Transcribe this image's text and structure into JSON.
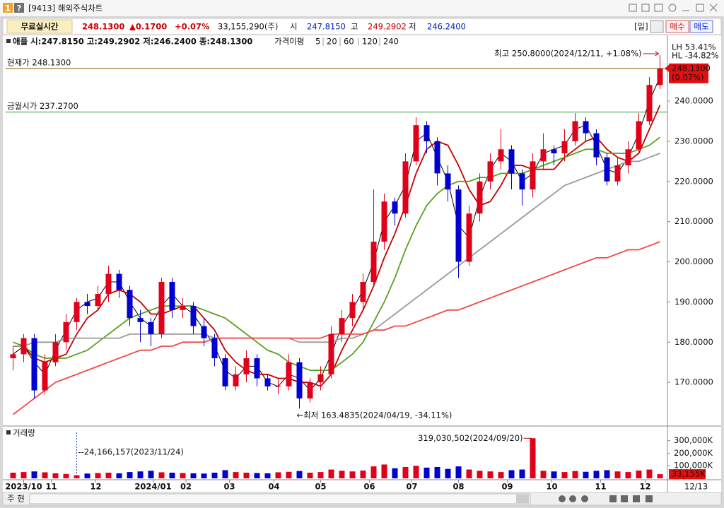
{
  "window": {
    "badge": "1",
    "help": "?",
    "title": "[9413] 해외주식차트"
  },
  "info_bar": {
    "mode": "무료실시간",
    "price": "248.1300",
    "change": "▲0.1700",
    "change_pct": "+0.07%",
    "volume": "33,155,290(주)",
    "open_label": "시",
    "open": "247.8150",
    "high_label": "고",
    "high": "249.2902",
    "low_label": "저",
    "low": "246.2400",
    "period": "[일]",
    "buy": "매수",
    "sell": "매도"
  },
  "legend_row": {
    "summary": "애플 시:247.8150 고:249.2902 저:246.2400 종:248.1300"
  },
  "bottom_bar": {
    "left": "주 현"
  },
  "chart_data": [
    {
      "type": "candlestick",
      "legend_title": "가격이평",
      "open": [
        176,
        177,
        181,
        168,
        175,
        180,
        185,
        190,
        189,
        192,
        197,
        193,
        186,
        185,
        182,
        195,
        188,
        189,
        184,
        181,
        176,
        169,
        172,
        176,
        171,
        169,
        169,
        175,
        166,
        170,
        172,
        182,
        186,
        190,
        195,
        205,
        215,
        212,
        225,
        234,
        230,
        222,
        218,
        200,
        212,
        220,
        225,
        228,
        222,
        218,
        225,
        228,
        227,
        230,
        235,
        232,
        226,
        220,
        224,
        228,
        235,
        244
      ],
      "high": [
        179,
        182,
        182,
        177,
        182,
        187,
        191,
        192,
        194,
        199,
        198,
        194,
        188,
        186,
        196,
        196,
        191,
        190,
        186,
        182,
        177,
        174,
        178,
        177,
        172,
        171,
        177,
        176,
        171,
        174,
        184,
        188,
        192,
        197,
        218,
        217,
        216,
        227,
        236,
        235,
        231,
        224,
        219,
        214,
        222,
        227,
        233,
        229,
        223,
        227,
        232,
        229,
        233,
        237,
        236,
        233,
        227,
        226,
        230,
        237,
        246,
        250.8
      ],
      "low": [
        173,
        175,
        166,
        167,
        174,
        178,
        183,
        187,
        188,
        190,
        191,
        184,
        180,
        179,
        181,
        186,
        186,
        182,
        179,
        174,
        168,
        168,
        170,
        169,
        168,
        167,
        168,
        163.4835,
        165,
        168,
        171,
        180,
        184,
        188,
        194,
        203,
        209,
        211,
        224,
        227,
        219,
        215,
        196,
        199,
        210,
        218,
        223,
        218,
        214,
        216,
        223,
        224,
        225,
        229,
        230,
        224,
        219,
        219,
        222,
        227,
        234,
        243
      ],
      "close": [
        177,
        181,
        168,
        175,
        180,
        185,
        190,
        189,
        192,
        197,
        193,
        186,
        185,
        182,
        195,
        188,
        189,
        184,
        181,
        176,
        169,
        172,
        176,
        171,
        169,
        169,
        175,
        166,
        170,
        172,
        182,
        186,
        190,
        195,
        205,
        215,
        212,
        225,
        234,
        230,
        222,
        218,
        200,
        212,
        220,
        225,
        228,
        222,
        218,
        225,
        228,
        227,
        230,
        235,
        232,
        226,
        220,
        224,
        228,
        235,
        244,
        248.13
      ],
      "up_color": "#e0001a",
      "down_color": "#0000d0",
      "series": [
        {
          "name": "5",
          "color": "#000000",
          "values": [
            177,
            179,
            175,
            172,
            178,
            183,
            188,
            190,
            191,
            195,
            195,
            190,
            186,
            184,
            189,
            192,
            189,
            187,
            183,
            179,
            173,
            171,
            174,
            174,
            170,
            169,
            172,
            171,
            168,
            171,
            177,
            184,
            188,
            193,
            200,
            210,
            214,
            219,
            230,
            232,
            226,
            220,
            209,
            206,
            216,
            223,
            227,
            225,
            220,
            222,
            227,
            228,
            229,
            233,
            234,
            229,
            223,
            222,
            226,
            232,
            240,
            246
          ]
        },
        {
          "name": "20",
          "color": "#c40000",
          "values": [
            179,
            179,
            176,
            175,
            176,
            177,
            182,
            186,
            188,
            192,
            193,
            192,
            190,
            187,
            187,
            188,
            189,
            189,
            186,
            183,
            178,
            175,
            173,
            172,
            172,
            171,
            171,
            170,
            170,
            169,
            172,
            178,
            183,
            188,
            194,
            201,
            207,
            214,
            222,
            228,
            230,
            229,
            224,
            218,
            214,
            215,
            219,
            224,
            224,
            223,
            223,
            223,
            226,
            228,
            230,
            231,
            228,
            226,
            225,
            227,
            233,
            239
          ]
        },
        {
          "name": "60",
          "color": "#5aa020",
          "values": [
            180,
            179,
            177,
            176,
            176,
            176,
            177,
            178,
            180,
            182,
            184,
            186,
            187,
            188,
            189,
            189,
            189,
            189,
            188,
            187,
            186,
            184,
            182,
            180,
            178,
            177,
            175,
            174,
            173,
            173,
            173,
            175,
            177,
            180,
            185,
            190,
            196,
            203,
            209,
            214,
            217,
            219,
            220,
            220,
            221,
            221,
            222,
            222,
            222,
            223,
            224,
            225,
            226,
            227,
            228,
            228,
            227,
            227,
            227,
            228,
            229,
            231
          ]
        },
        {
          "name": "120",
          "color": "#9a9a9a",
          "values": [
            179,
            179,
            180,
            180,
            180,
            181,
            181,
            181,
            181,
            181,
            181,
            182,
            182,
            182,
            182,
            182,
            182,
            182,
            182,
            181,
            181,
            181,
            181,
            181,
            181,
            181,
            181,
            180,
            180,
            180,
            180,
            181,
            181,
            182,
            183,
            185,
            187,
            189,
            191,
            193,
            195,
            197,
            199,
            201,
            203,
            205,
            207,
            209,
            211,
            213,
            215,
            217,
            219,
            220,
            221,
            222,
            223,
            224,
            225,
            225,
            226,
            227
          ]
        },
        {
          "name": "240",
          "color": "#f04848",
          "values": [
            162,
            164,
            166,
            168,
            170,
            171,
            172,
            173,
            174,
            175,
            176,
            177,
            178,
            178,
            179,
            179,
            180,
            180,
            180,
            181,
            181,
            181,
            181,
            181,
            181,
            181,
            181,
            181,
            181,
            181,
            182,
            182,
            182,
            182,
            183,
            183,
            184,
            184,
            185,
            186,
            187,
            188,
            188,
            189,
            190,
            191,
            192,
            193,
            194,
            195,
            196,
            197,
            198,
            199,
            200,
            201,
            201,
            202,
            203,
            203,
            204,
            205
          ]
        }
      ],
      "xlim": [
        -0.7,
        61.7
      ],
      "ylim": [
        159.3,
        253.2
      ],
      "yticks": [
        {
          "value": 170,
          "label": "170.0000"
        },
        {
          "value": 180,
          "label": "180.0000"
        },
        {
          "value": 190,
          "label": "190.0000"
        },
        {
          "value": 200,
          "label": "200.0000"
        },
        {
          "value": 210,
          "label": "210.0000"
        },
        {
          "value": 220,
          "label": "220.0000"
        },
        {
          "value": 230,
          "label": "230.0000"
        },
        {
          "value": 240,
          "label": "240.0000"
        }
      ],
      "current_price": {
        "value": 248.13,
        "label": "현재가 248.1300",
        "axis_label": "248.1300",
        "change_label": "(0.07%)",
        "color": "#8b5a00"
      },
      "month_open": {
        "value": 237.27,
        "label": "금월시가 237.2700",
        "color": "#2e9a2e"
      },
      "high_note": {
        "value": 250.8,
        "label": "최고 250.8000(2024/12/11, +1.08%)"
      },
      "low_note": {
        "value": 163.4835,
        "label": "←최저 163.4835(2024/04/19, -34.11%)"
      },
      "range_stats": [
        "LH  53.41%",
        "HL -34.82%"
      ]
    },
    {
      "type": "bar",
      "title": "거래량",
      "values": [
        45000000,
        50000000,
        55000000,
        48000000,
        40000000,
        35000000,
        24166157,
        38000000,
        42000000,
        45000000,
        40000000,
        50000000,
        55000000,
        60000000,
        48000000,
        45000000,
        42000000,
        40000000,
        38000000,
        45000000,
        65000000,
        50000000,
        45000000,
        42000000,
        40000000,
        48000000,
        52000000,
        58000000,
        45000000,
        50000000,
        70000000,
        60000000,
        55000000,
        62000000,
        95000000,
        110000000,
        80000000,
        90000000,
        100000000,
        85000000,
        90000000,
        75000000,
        95000000,
        70000000,
        60000000,
        55000000,
        50000000,
        65000000,
        70000000,
        319030502,
        60000000,
        55000000,
        50000000,
        58000000,
        52000000,
        60000000,
        65000000,
        55000000,
        50000000,
        62000000,
        70000000,
        33155290
      ],
      "xlim": [
        -0.7,
        61.7
      ],
      "ylim": [
        0,
        405000000
      ],
      "yticks": [
        {
          "value": 100000000,
          "label": "100,000K"
        },
        {
          "value": 200000000,
          "label": "200,000K"
        },
        {
          "value": 300000000,
          "label": "300,000K"
        }
      ],
      "xticks": [
        {
          "value": 1.0,
          "label": "2023/10"
        },
        {
          "value": 3.6,
          "label": "11"
        },
        {
          "value": 7.8,
          "label": "12"
        },
        {
          "value": 13.2,
          "label": "2024/01"
        },
        {
          "value": 16.3,
          "label": "02"
        },
        {
          "value": 20.4,
          "label": "03"
        },
        {
          "value": 24.6,
          "label": "04"
        },
        {
          "value": 29.0,
          "label": "05"
        },
        {
          "value": 33.6,
          "label": "06"
        },
        {
          "value": 37.6,
          "label": "07"
        },
        {
          "value": 42.0,
          "label": "08"
        },
        {
          "value": 46.6,
          "label": "09"
        },
        {
          "value": 50.8,
          "label": "10"
        },
        {
          "value": 55.4,
          "label": "11"
        },
        {
          "value": 59.6,
          "label": "12"
        }
      ],
      "end_label": "12/13",
      "last_value": {
        "value": 33155290,
        "label": "33,155K"
      },
      "low_note": {
        "value": 24166157,
        "label": "--24,166,157(2023/11/24)"
      },
      "high_note": {
        "value": 319030502,
        "label": "319,030,502(2024/09/20)"
      }
    }
  ]
}
